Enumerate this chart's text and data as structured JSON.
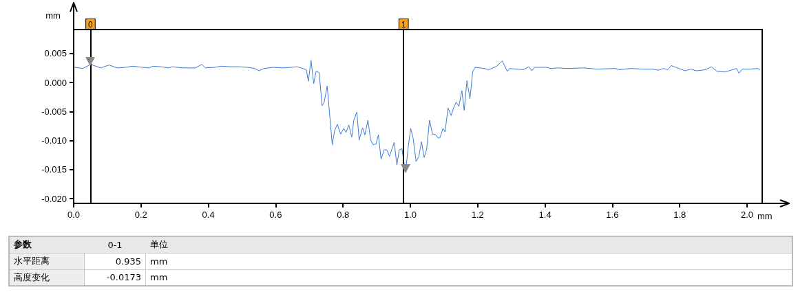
{
  "chart_data": {
    "type": "line",
    "xlabel": "mm",
    "ylabel": "mm",
    "x": [
      0.003,
      0.027,
      0.05,
      0.081,
      0.105,
      0.129,
      0.153,
      0.176,
      0.204,
      0.224,
      0.235,
      0.258,
      0.282,
      0.292,
      0.323,
      0.361,
      0.381,
      0.391,
      0.419,
      0.439,
      0.463,
      0.49,
      0.517,
      0.538,
      0.55,
      0.565,
      0.592,
      0.62,
      0.647,
      0.664,
      0.691,
      0.697,
      0.705,
      0.713,
      0.72,
      0.729,
      0.738,
      0.744,
      0.753,
      0.768,
      0.775,
      0.783,
      0.793,
      0.802,
      0.809,
      0.817,
      0.826,
      0.832,
      0.841,
      0.848,
      0.858,
      0.865,
      0.874,
      0.882,
      0.889,
      0.898,
      0.905,
      0.913,
      0.922,
      0.93,
      0.938,
      0.952,
      0.96,
      0.967,
      0.975,
      0.981,
      0.986,
      0.993,
      1.001,
      1.008,
      1.017,
      1.025,
      1.033,
      1.041,
      1.048,
      1.057,
      1.066,
      1.075,
      1.083,
      1.088,
      1.097,
      1.103,
      1.112,
      1.121,
      1.129,
      1.136,
      1.144,
      1.153,
      1.16,
      1.168,
      1.177,
      1.185,
      1.192,
      1.219,
      1.233,
      1.257,
      1.273,
      1.288,
      1.294,
      1.335,
      1.352,
      1.361,
      1.369,
      1.404,
      1.417,
      1.438,
      1.472,
      1.513,
      1.554,
      1.608,
      1.622,
      1.656,
      1.69,
      1.72,
      1.736,
      1.751,
      1.765,
      1.775,
      1.816,
      1.833,
      1.85,
      1.877,
      1.894,
      1.911,
      1.935,
      1.969,
      1.976,
      1.986,
      2.01,
      2.031,
      2.039
    ],
    "series": [
      {
        "color": "#3a7bd5",
        "values": [
          0.0026,
          0.0024,
          0.0031,
          0.0025,
          0.003,
          0.0025,
          0.0026,
          0.0028,
          0.0026,
          0.0025,
          0.0028,
          0.0027,
          0.0025,
          0.0027,
          0.0025,
          0.0025,
          0.0031,
          0.0025,
          0.0026,
          0.0028,
          0.0027,
          0.0027,
          0.0026,
          0.0024,
          0.002,
          0.0024,
          0.0026,
          0.0025,
          0.0026,
          0.0027,
          0.0022,
          0.0002,
          0.0038,
          -0.0002,
          0.0019,
          0.0017,
          -0.004,
          -0.0034,
          -0.0006,
          -0.0107,
          -0.0083,
          -0.0072,
          -0.0089,
          -0.0079,
          -0.0086,
          -0.0073,
          -0.0094,
          -0.0065,
          -0.0051,
          -0.0099,
          -0.0078,
          -0.009,
          -0.0065,
          -0.0099,
          -0.0107,
          -0.0106,
          -0.009,
          -0.0132,
          -0.0116,
          -0.0116,
          -0.0127,
          -0.0103,
          -0.0142,
          -0.0116,
          -0.0114,
          -0.0138,
          -0.0154,
          -0.0114,
          -0.0079,
          -0.0095,
          -0.0136,
          -0.0128,
          -0.0102,
          -0.0129,
          -0.0116,
          -0.0065,
          -0.0089,
          -0.009,
          -0.0096,
          -0.0095,
          -0.0079,
          -0.0085,
          -0.0044,
          -0.0057,
          -0.0043,
          -0.0034,
          -0.0041,
          -0.0014,
          -0.0048,
          0.0003,
          -0.0028,
          0.0018,
          0.0026,
          0.0024,
          0.0022,
          0.0028,
          0.0037,
          0.0019,
          0.0024,
          0.0022,
          0.0027,
          0.002,
          0.0026,
          0.0026,
          0.0024,
          0.0025,
          0.0024,
          0.0025,
          0.0023,
          0.0024,
          0.0022,
          0.0024,
          0.0023,
          0.0023,
          0.0021,
          0.0024,
          0.0022,
          0.0029,
          0.002,
          0.0023,
          0.002,
          0.0022,
          0.0027,
          0.0019,
          0.0018,
          0.0024,
          0.0016,
          0.0023,
          0.0023,
          0.0024,
          0.0022
        ]
      }
    ],
    "xlim": [
      0,
      2.045
    ],
    "ylim": [
      -0.0208,
      0.0091
    ],
    "xticks": [
      {
        "value": 0,
        "label": "0.0"
      },
      0.2,
      0.4,
      0.6,
      0.8,
      {
        "value": 1,
        "label": "1.0"
      },
      1.2,
      1.4,
      1.6,
      1.8,
      {
        "value": 2,
        "label": "2.0"
      }
    ],
    "yticks": [
      {
        "value": -0.02,
        "label": "-0.020"
      },
      -0.015,
      {
        "value": -0.01,
        "label": "-0.010"
      },
      -0.005,
      {
        "value": 0,
        "label": "0.000"
      },
      0.005
    ],
    "ref_lines": [
      {
        "axis": "x",
        "value": 0.05,
        "label": "0",
        "color": "#000000"
      },
      {
        "axis": "x",
        "value": 0.985,
        "label": "1",
        "color": "#000000"
      }
    ],
    "annotations": [
      "参数",
      "0-1",
      "单位",
      "水平距离",
      "0.935",
      "mm",
      "高度变化",
      "-0.0173",
      "mm"
    ],
    "grid": false,
    "marker": "none",
    "line_style": "solid"
  }
}
